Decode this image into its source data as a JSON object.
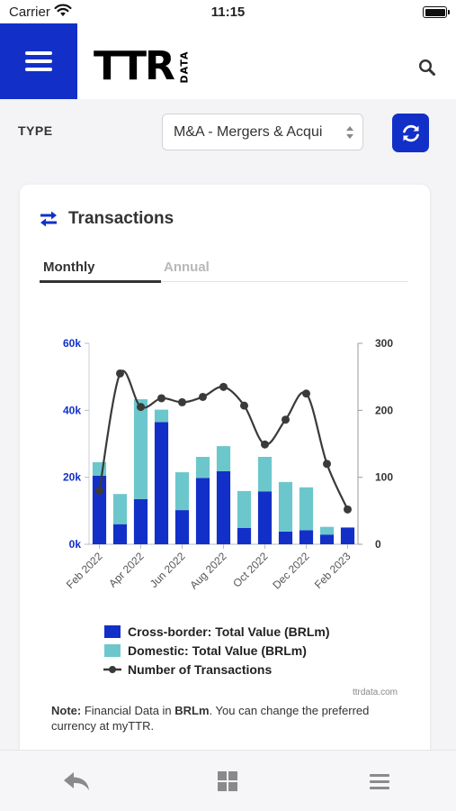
{
  "status_bar": {
    "carrier": "Carrier",
    "time": "11:15"
  },
  "header": {
    "logo_text": "TTR",
    "logo_tag": "DATA",
    "menu_icon": "hamburger-icon",
    "search_icon": "search-icon"
  },
  "filter": {
    "type_label": "TYPE",
    "type_value": "M&A - Mergers & Acquisitions",
    "type_display": "M&A - Mergers & Acqui",
    "refresh_icon": "refresh-icon"
  },
  "card": {
    "title": "Transactions",
    "title_icon": "transfer-arrows-icon",
    "tabs": [
      {
        "label": "Monthly",
        "active": true
      },
      {
        "label": "Annual",
        "active": false
      }
    ],
    "credit": "ttrdata.com",
    "note": {
      "prefix": "Note:",
      "text1": " Financial Data in ",
      "unit": "BRLm",
      "text2": ". You can change the preferred currency at myTTR."
    }
  },
  "chart_data": {
    "type": "bar",
    "categories": [
      "Feb 2022",
      "Mar 2022",
      "Apr 2022",
      "May 2022",
      "Jun 2022",
      "Jul 2022",
      "Aug 2022",
      "Sep 2022",
      "Oct 2022",
      "Nov 2022",
      "Dec 2022",
      "Jan 2023",
      "Feb 2023"
    ],
    "x_tick_labels": [
      "Feb 2022",
      "Apr 2022",
      "Jun 2022",
      "Aug 2022",
      "Oct 2022",
      "Dec 2022",
      "Feb 2023"
    ],
    "stacked": true,
    "series": [
      {
        "name": "Cross-border: Total Value (BRLm)",
        "kind": "bar",
        "axis": "left",
        "color": "#1230c8",
        "values": [
          20500,
          6000,
          13500,
          36500,
          10200,
          19800,
          21800,
          4900,
          15800,
          3800,
          4200,
          2900,
          5000
        ]
      },
      {
        "name": "Domestic: Total Value (BRLm)",
        "kind": "bar",
        "axis": "left",
        "color": "#6cc7cc",
        "values": [
          4000,
          9000,
          29800,
          3700,
          11300,
          6300,
          7500,
          11000,
          10300,
          14800,
          12800,
          2300,
          0
        ]
      },
      {
        "name": "Number of Transactions",
        "kind": "line",
        "axis": "right",
        "color": "#3a3a3a",
        "values": [
          80,
          255,
          205,
          218,
          212,
          220,
          235,
          207,
          149,
          186,
          225,
          120,
          52
        ]
      }
    ],
    "left_axis": {
      "ticks": [
        "0k",
        "20k",
        "40k",
        "60k"
      ],
      "tick_values": [
        0,
        20000,
        40000,
        60000
      ],
      "ylim": [
        0,
        60000
      ],
      "color": "#1230c8"
    },
    "right_axis": {
      "ticks": [
        "0",
        "100",
        "200",
        "300"
      ],
      "tick_values": [
        0,
        100,
        200,
        300
      ],
      "ylim": [
        0,
        300
      ]
    },
    "legend_position": "bottom",
    "grid": false
  },
  "bottom_bar": {
    "back_icon": "reply-arrow-icon",
    "grid_icon": "grid-icon",
    "list_icon": "list-menu-icon"
  }
}
